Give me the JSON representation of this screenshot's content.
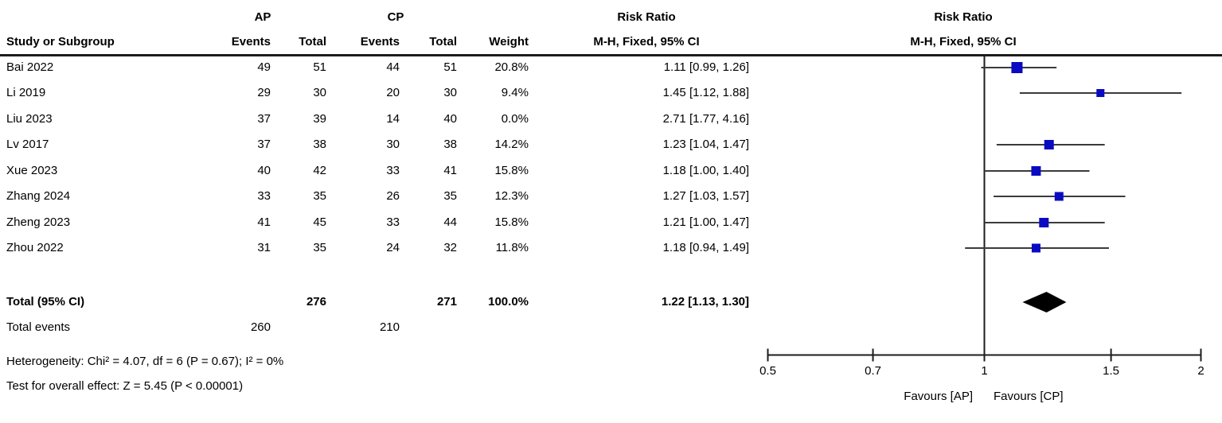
{
  "header": {
    "group1": "AP",
    "group2": "CP",
    "col_study": "Study or Subgroup",
    "col_events": "Events",
    "col_total": "Total",
    "col_weight": "Weight",
    "effect_title": "Risk Ratio",
    "effect_subtitle": "M-H, Fixed, 95% CI",
    "plot_title": "Risk Ratio",
    "plot_subtitle": "M-H, Fixed, 95% CI"
  },
  "chart_data": {
    "type": "forest",
    "effect_measure": "Risk Ratio",
    "method": "M-H, Fixed, 95% CI",
    "x_axis": {
      "scale": "log",
      "min": 0.5,
      "max": 2,
      "ticks": [
        "0.5",
        "0.7",
        "1",
        "1.5",
        "2"
      ],
      "tick_values": [
        0.5,
        0.7,
        1,
        1.5,
        2
      ],
      "ref_line": 1
    },
    "favours_left": "Favours [AP]",
    "favours_right": "Favours [CP]",
    "studies": [
      {
        "study": "Bai 2022",
        "e1": 49,
        "t1": 51,
        "e2": 44,
        "t2": 51,
        "weight": "20.8%",
        "weight_val": 20.8,
        "rr": 1.11,
        "lo": 0.99,
        "hi": 1.26,
        "ci_label": "1.11 [0.99, 1.26]",
        "plotted": true
      },
      {
        "study": "Li 2019",
        "e1": 29,
        "t1": 30,
        "e2": 20,
        "t2": 30,
        "weight": "9.4%",
        "weight_val": 9.4,
        "rr": 1.45,
        "lo": 1.12,
        "hi": 1.88,
        "ci_label": "1.45 [1.12, 1.88]",
        "plotted": true
      },
      {
        "study": "Liu 2023",
        "e1": 37,
        "t1": 39,
        "e2": 14,
        "t2": 40,
        "weight": "0.0%",
        "weight_val": 0.0,
        "rr": 2.71,
        "lo": 1.77,
        "hi": 4.16,
        "ci_label": "2.71 [1.77, 4.16]",
        "plotted": false
      },
      {
        "study": "Lv 2017",
        "e1": 37,
        "t1": 38,
        "e2": 30,
        "t2": 38,
        "weight": "14.2%",
        "weight_val": 14.2,
        "rr": 1.23,
        "lo": 1.04,
        "hi": 1.47,
        "ci_label": "1.23 [1.04, 1.47]",
        "plotted": true
      },
      {
        "study": "Xue 2023",
        "e1": 40,
        "t1": 42,
        "e2": 33,
        "t2": 41,
        "weight": "15.8%",
        "weight_val": 15.8,
        "rr": 1.18,
        "lo": 1.0,
        "hi": 1.4,
        "ci_label": "1.18 [1.00, 1.40]",
        "plotted": true
      },
      {
        "study": "Zhang 2024",
        "e1": 33,
        "t1": 35,
        "e2": 26,
        "t2": 35,
        "weight": "12.3%",
        "weight_val": 12.3,
        "rr": 1.27,
        "lo": 1.03,
        "hi": 1.57,
        "ci_label": "1.27 [1.03, 1.57]",
        "plotted": true
      },
      {
        "study": "Zheng 2023",
        "e1": 41,
        "t1": 45,
        "e2": 33,
        "t2": 44,
        "weight": "15.8%",
        "weight_val": 15.8,
        "rr": 1.21,
        "lo": 1.0,
        "hi": 1.47,
        "ci_label": "1.21 [1.00, 1.47]",
        "plotted": true
      },
      {
        "study": "Zhou 2022",
        "e1": 31,
        "t1": 35,
        "e2": 24,
        "t2": 32,
        "weight": "11.8%",
        "weight_val": 11.8,
        "rr": 1.18,
        "lo": 0.94,
        "hi": 1.49,
        "ci_label": "1.18 [0.94, 1.49]",
        "plotted": true
      }
    ],
    "total": {
      "label": "Total (95% CI)",
      "t1": 276,
      "t2": 271,
      "weight": "100.0%",
      "rr": 1.22,
      "lo": 1.13,
      "hi": 1.3,
      "ci_label": "1.22 [1.13, 1.30]"
    },
    "total_events": {
      "label": "Total events",
      "e1": 260,
      "e2": 210
    },
    "heterogeneity": "Heterogeneity: Chi² = 4.07, df = 6 (P = 0.67); I² = 0%",
    "overall_effect": "Test for overall effect: Z = 5.45 (P < 0.00001)"
  },
  "colors": {
    "square": "#0a0ac2",
    "diamond": "#000000",
    "ci_line": "#3b3b3b",
    "axis": "#1c1c1c",
    "text": "#000000"
  }
}
